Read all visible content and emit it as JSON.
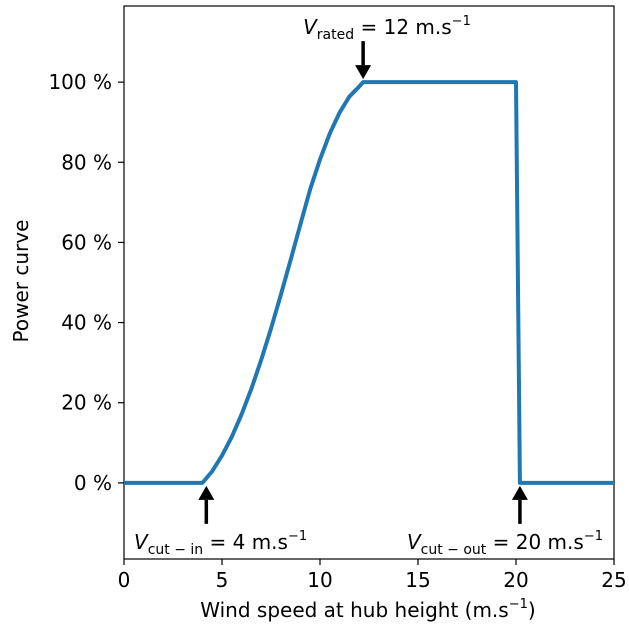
{
  "chart_data": {
    "type": "line",
    "xlabel": "Wind speed at hub height (m.s",
    "xlabel_sup": "−1",
    "xlabel_tail": ")",
    "ylabel": "Power curve",
    "xlim": [
      0,
      25
    ],
    "ylim": [
      -19,
      119
    ],
    "xticks": [
      0,
      5,
      10,
      15,
      20,
      25
    ],
    "yticks": [
      0,
      20,
      40,
      60,
      80,
      100
    ],
    "ytick_suffix": " %",
    "grid": false,
    "series": [
      {
        "color": "#1f77b4",
        "x": [
          0,
          4,
          4.5,
          5,
          5.5,
          6,
          6.5,
          7,
          7.5,
          8,
          8.5,
          9,
          9.5,
          10,
          10.5,
          11,
          11.5,
          12,
          12.2,
          20,
          20.2,
          25
        ],
        "y": [
          0,
          0,
          2.9,
          6.8,
          11.5,
          17.1,
          23.5,
          30.7,
          38.5,
          46.9,
          55.6,
          64.5,
          73.3,
          80.7,
          87.2,
          92.4,
          96.4,
          98.9,
          100,
          100,
          0,
          0
        ]
      }
    ],
    "annotations": [
      {
        "name": "cut-in",
        "x": 4.2,
        "y": 0,
        "pre": "V",
        "sub": "cut − in",
        "post": " = 4 m.s",
        "sup": "−1"
      },
      {
        "name": "rated",
        "x": 12.2,
        "y": 100,
        "pre": "V",
        "sub": "rated",
        "post": " = 12 m.s",
        "sup": "−1"
      },
      {
        "name": "cut-out",
        "x": 20.2,
        "y": 0,
        "pre": "V",
        "sub": "cut − out",
        "post": " = 20 m.s",
        "sup": "−1"
      }
    ]
  }
}
